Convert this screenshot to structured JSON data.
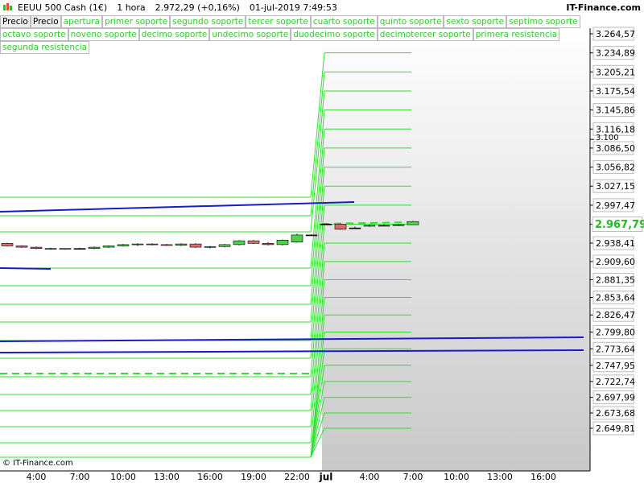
{
  "header": {
    "symbol": "EEUU 500 Cash (1€)",
    "interval": "1 hora",
    "quote": "2.972,29 (+0,16%)",
    "datetime": "01-jul-2019 7:49:53",
    "brand": "IT-Finance.com"
  },
  "buttons": [
    "Precio",
    "Precio"
  ],
  "footer": "© IT-Finance.com",
  "chart_data": {
    "type": "candlestick",
    "indicators": [
      "apertura",
      "primer soporte",
      "segundo soporte",
      "tercer soporte",
      "cuarto soporte",
      "quinto soporte",
      "sexto soporte",
      "septimo soporte",
      "octavo soporte",
      "noveno soporte",
      "decimo soporte",
      "undecimo soporte",
      "duodecimo soporte",
      "decimotercer soporte",
      "primera resistencia",
      "segunda resistencia"
    ],
    "categories": [
      null,
      null,
      "4:00",
      null,
      null,
      "7:00",
      null,
      null,
      "10:00",
      null,
      null,
      "13:00",
      null,
      null,
      "16:00",
      null,
      null,
      "19:00",
      null,
      null,
      "22:00",
      null,
      "jul",
      null,
      null,
      "4:00",
      null,
      null,
      "7:00",
      null,
      null,
      "10:00",
      null,
      null,
      "13:00",
      null,
      null,
      "16:00",
      null,
      null,
      null
    ],
    "open": [
      2938,
      2934,
      2932,
      2930,
      2929,
      2930,
      2930,
      2932,
      2934,
      2936,
      2937,
      2936,
      2935,
      2937,
      2932,
      2933,
      2936,
      2942,
      2938,
      2936,
      2940,
      2951,
      2968,
      2968,
      2962,
      2965,
      2966,
      2966,
      2967,
      null,
      null,
      null,
      null,
      null,
      null,
      null,
      null,
      null,
      null,
      null,
      null
    ],
    "high": [
      2939,
      2935,
      2933,
      2931,
      2930,
      2931,
      2933,
      2935,
      2937,
      2938,
      2938,
      2937,
      2938,
      2938,
      2934,
      2937,
      2943,
      2943,
      2940,
      2944,
      2953,
      2952,
      2969,
      2969,
      2964,
      2967,
      2967,
      2968,
      2973,
      null,
      null,
      null,
      null,
      null,
      null,
      null,
      null,
      null,
      null,
      null,
      null
    ],
    "low": [
      2933,
      2931,
      2929,
      2928,
      2928,
      2929,
      2929,
      2931,
      2933,
      2934,
      2935,
      2934,
      2934,
      2931,
      2930,
      2932,
      2935,
      2937,
      2935,
      2935,
      2939,
      2950,
      2967,
      2959,
      2961,
      2964,
      2965,
      2965,
      2967,
      null,
      null,
      null,
      null,
      null,
      null,
      null,
      null,
      null,
      null,
      null,
      null
    ],
    "close": [
      2934,
      2932,
      2930,
      2929,
      2930,
      2930,
      2932,
      2934,
      2936,
      2937,
      2936,
      2935,
      2937,
      2932,
      2933,
      2936,
      2942,
      2938,
      2936,
      2943,
      2951,
      2951,
      2968,
      2960,
      2962,
      2966,
      2966,
      2967,
      2972,
      null,
      null,
      null,
      null,
      null,
      null,
      null,
      null,
      null,
      null,
      null,
      null
    ],
    "up_color": "#4fd14f",
    "down_color": "#e06a6a",
    "level_color": "#33dd33",
    "levels_prev": [
      3009.9,
      2981.0,
      2955.9,
      2899.5,
      2871.9,
      2843.0,
      2815.4,
      2786.6,
      2759.0,
      2730.1,
      2702.5,
      2677.4,
      2652.3,
      2627.2,
      2604.6
    ],
    "levels_curr": [
      3234.89,
      3205.21,
      3175.54,
      3145.86,
      3116.18,
      3086.5,
      3056.82,
      3027.15,
      2997.47,
      2967.79,
      2938.41,
      2909.6,
      2881.35,
      2853.64,
      2826.47,
      2799.8,
      2773.64,
      2747.95,
      2722.74,
      2697.99,
      2673.68,
      2649.81
    ],
    "ylim": [
      2589.6,
      3273.35
    ],
    "yticks": [
      {
        "value": 3264.57,
        "label": "3.264,57"
      },
      {
        "value": 3234.89,
        "label": "3.234,89"
      },
      {
        "value": 3205.21,
        "label": "3.205,21"
      },
      {
        "value": 3175.54,
        "label": "3.175,54"
      },
      {
        "value": 3145.86,
        "label": "3.145,86"
      },
      {
        "value": 3116.18,
        "label": "3.116,18"
      },
      {
        "value": 3086.5,
        "label": "3.086,50"
      },
      {
        "value": 3056.82,
        "label": "3.056,82"
      },
      {
        "value": 3027.15,
        "label": "3.027,15"
      },
      {
        "value": 2997.47,
        "label": "2.997,47"
      },
      {
        "value": 2938.41,
        "label": "2.938,41"
      },
      {
        "value": 2909.6,
        "label": "2.909,60"
      },
      {
        "value": 2881.35,
        "label": "2.881,35"
      },
      {
        "value": 2853.64,
        "label": "2.853,64"
      },
      {
        "value": 2826.47,
        "label": "2.826,47"
      },
      {
        "value": 2799.8,
        "label": "2.799,80"
      },
      {
        "value": 2773.64,
        "label": "2.773,64"
      },
      {
        "value": 2747.95,
        "label": "2.747,95"
      },
      {
        "value": 2722.74,
        "label": "2.722,74"
      },
      {
        "value": 2697.99,
        "label": "2.697,99"
      },
      {
        "value": 2673.68,
        "label": "2.673,68"
      },
      {
        "value": 2649.81,
        "label": "2.649,81"
      }
    ],
    "axis_marks": [
      {
        "value": 3100,
        "label": "3.100"
      }
    ],
    "last_price": {
      "value": 2967.79,
      "label": "2.967,79"
    }
  }
}
